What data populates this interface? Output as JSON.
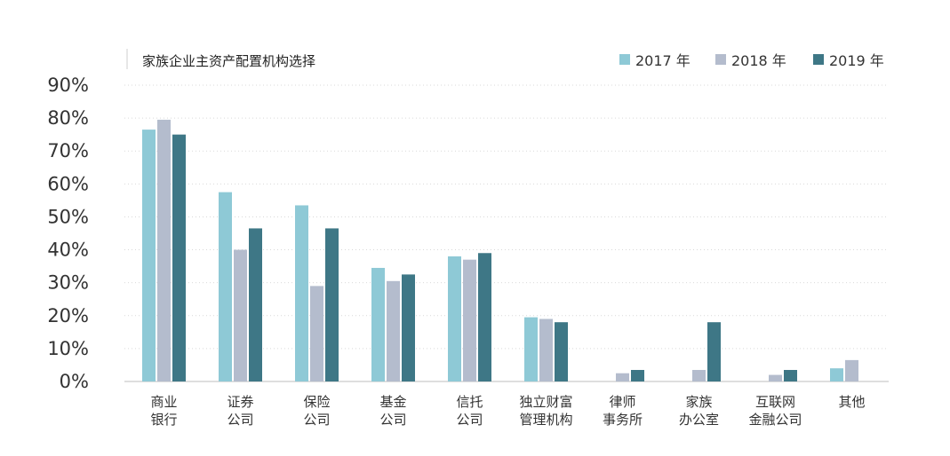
{
  "chart_data": {
    "type": "bar",
    "title": "家族企业主资产配置机构选择",
    "xlabel": "",
    "ylabel": "",
    "ylim": [
      0,
      90
    ],
    "yticks": [
      "0%",
      "10%",
      "20%",
      "30%",
      "40%",
      "50%",
      "60%",
      "70%",
      "80%",
      "90%"
    ],
    "grid": true,
    "legend_position": "top-right",
    "categories": [
      [
        "商业",
        "银行"
      ],
      [
        "证券",
        "公司"
      ],
      [
        "保险",
        "公司"
      ],
      [
        "基金",
        "公司"
      ],
      [
        "信托",
        "公司"
      ],
      [
        "独立财富",
        "管理机构"
      ],
      [
        "律师",
        "事务所"
      ],
      [
        "家族",
        "办公室"
      ],
      [
        "互联网",
        "金融公司"
      ],
      [
        "其他"
      ]
    ],
    "series": [
      {
        "name": "2017 年",
        "color": "#8ec9d6",
        "values": [
          76.5,
          57.5,
          53.5,
          34.5,
          38.0,
          19.5,
          null,
          null,
          null,
          4.0
        ]
      },
      {
        "name": "2018 年",
        "color": "#b4bccd",
        "values": [
          79.5,
          40.0,
          29.0,
          30.5,
          37.0,
          19.0,
          2.5,
          3.5,
          2.0,
          6.5
        ]
      },
      {
        "name": "2019 年",
        "color": "#3e7786",
        "values": [
          75.0,
          46.5,
          46.5,
          32.5,
          39.0,
          18.0,
          3.5,
          18.0,
          3.5,
          null
        ]
      }
    ]
  }
}
